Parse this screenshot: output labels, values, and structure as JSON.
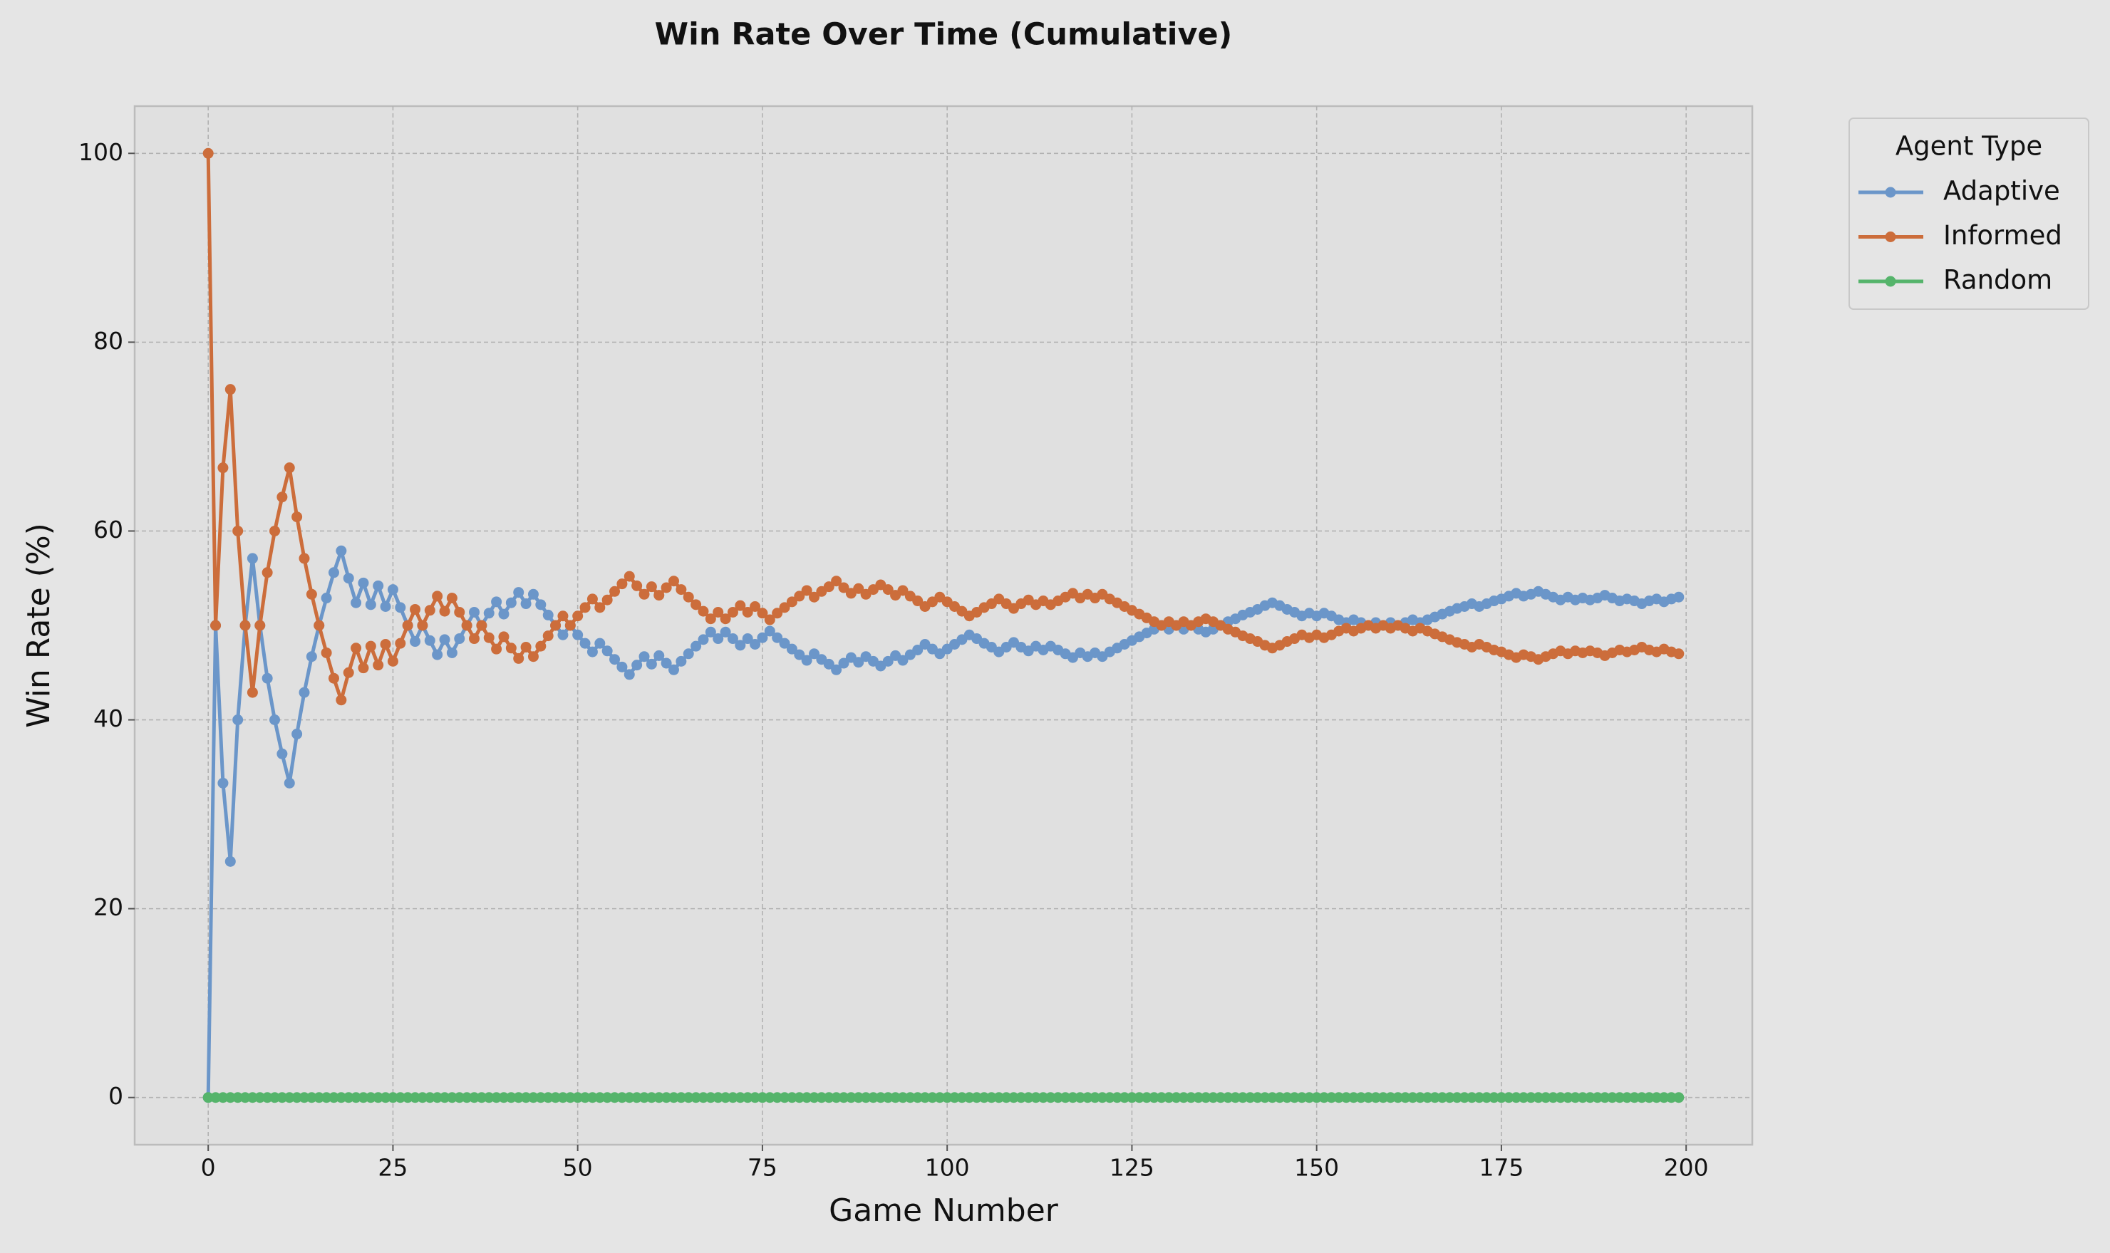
{
  "chart_data": {
    "type": "line",
    "title": "Win Rate Over Time (Cumulative)",
    "x_label": "Game Number",
    "y_label": "Win Rate (%)",
    "legend_title": "Agent Type",
    "legend_position": "outside-upper-right",
    "grid": true,
    "xlim": [
      -9.95,
      208.95
    ],
    "ylim": [
      -5,
      105
    ],
    "xticks": [
      0,
      25,
      50,
      75,
      100,
      125,
      150,
      175,
      200
    ],
    "yticks": [
      0,
      20,
      40,
      60,
      80,
      100
    ],
    "x": [
      0,
      1,
      2,
      3,
      4,
      5,
      6,
      7,
      8,
      9,
      10,
      11,
      12,
      13,
      14,
      15,
      16,
      17,
      18,
      19,
      20,
      21,
      22,
      23,
      24,
      25,
      26,
      27,
      28,
      29,
      30,
      31,
      32,
      33,
      34,
      35,
      36,
      37,
      38,
      39,
      40,
      41,
      42,
      43,
      44,
      45,
      46,
      47,
      48,
      49,
      50,
      51,
      52,
      53,
      54,
      55,
      56,
      57,
      58,
      59,
      60,
      61,
      62,
      63,
      64,
      65,
      66,
      67,
      68,
      69,
      70,
      71,
      72,
      73,
      74,
      75,
      76,
      77,
      78,
      79,
      80,
      81,
      82,
      83,
      84,
      85,
      86,
      87,
      88,
      89,
      90,
      91,
      92,
      93,
      94,
      95,
      96,
      97,
      98,
      99,
      100,
      101,
      102,
      103,
      104,
      105,
      106,
      107,
      108,
      109,
      110,
      111,
      112,
      113,
      114,
      115,
      116,
      117,
      118,
      119,
      120,
      121,
      122,
      123,
      124,
      125,
      126,
      127,
      128,
      129,
      130,
      131,
      132,
      133,
      134,
      135,
      136,
      137,
      138,
      139,
      140,
      141,
      142,
      143,
      144,
      145,
      146,
      147,
      148,
      149,
      150,
      151,
      152,
      153,
      154,
      155,
      156,
      157,
      158,
      159,
      160,
      161,
      162,
      163,
      164,
      165,
      166,
      167,
      168,
      169,
      170,
      171,
      172,
      173,
      174,
      175,
      176,
      177,
      178,
      179,
      180,
      181,
      182,
      183,
      184,
      185,
      186,
      187,
      188,
      189,
      190,
      191,
      192,
      193,
      194,
      195,
      196,
      197,
      198,
      199
    ],
    "series": [
      {
        "name": "Adaptive",
        "color": "#6b96c9",
        "values": [
          0,
          50,
          33.3,
          25,
          40,
          50,
          57.1,
          50,
          44.4,
          40,
          36.4,
          33.3,
          38.5,
          42.9,
          46.7,
          50,
          52.9,
          55.6,
          57.9,
          55,
          52.4,
          54.5,
          52.2,
          54.2,
          52,
          53.8,
          51.9,
          50,
          48.3,
          50,
          48.4,
          46.9,
          48.5,
          47.1,
          48.6,
          50,
          51.4,
          50,
          51.3,
          52.5,
          51.2,
          52.4,
          53.5,
          52.3,
          53.3,
          52.2,
          51.1,
          50,
          49,
          50,
          49,
          48.1,
          47.2,
          48.1,
          47.3,
          46.4,
          45.6,
          44.8,
          45.8,
          46.7,
          45.9,
          46.8,
          46,
          45.3,
          46.2,
          47,
          47.8,
          48.5,
          49.3,
          48.6,
          49.3,
          48.6,
          47.9,
          48.6,
          48,
          48.7,
          49.4,
          48.7,
          48.1,
          47.5,
          46.9,
          46.3,
          47,
          46.4,
          45.9,
          45.3,
          46,
          46.6,
          46.1,
          46.7,
          46.2,
          45.7,
          46.2,
          46.8,
          46.3,
          46.9,
          47.4,
          48,
          47.5,
          47,
          47.5,
          48,
          48.5,
          49,
          48.6,
          48.1,
          47.7,
          47.2,
          47.7,
          48.2,
          47.7,
          47.3,
          47.8,
          47.4,
          47.8,
          47.4,
          47,
          46.6,
          47.1,
          46.7,
          47.1,
          46.7,
          47.2,
          47.6,
          48,
          48.4,
          48.8,
          49.2,
          49.6,
          50,
          49.6,
          50,
          49.6,
          50,
          49.6,
          49.3,
          49.6,
          50,
          50.4,
          50.7,
          51.1,
          51.4,
          51.7,
          52.1,
          52.4,
          52.1,
          51.7,
          51.4,
          51,
          51.3,
          51,
          51.3,
          51,
          50.6,
          50.3,
          50.6,
          50.3,
          50,
          50.3,
          50,
          50.3,
          50,
          50.3,
          50.6,
          50.3,
          50.6,
          50.9,
          51.2,
          51.5,
          51.8,
          52,
          52.3,
          52,
          52.3,
          52.6,
          52.8,
          53.1,
          53.4,
          53.1,
          53.3,
          53.6,
          53.3,
          53,
          52.7,
          53,
          52.7,
          52.9,
          52.7,
          52.9,
          53.2,
          52.9,
          52.6,
          52.8,
          52.6,
          52.3,
          52.6,
          52.8,
          52.5,
          52.8,
          53
        ]
      },
      {
        "name": "Informed",
        "color": "#cc6d3b",
        "values": [
          100,
          50,
          66.7,
          75,
          60,
          50,
          42.9,
          50,
          55.6,
          60,
          63.6,
          66.7,
          61.5,
          57.1,
          53.3,
          50,
          47.1,
          44.4,
          42.1,
          45,
          47.6,
          45.5,
          47.8,
          45.8,
          48,
          46.2,
          48.1,
          50,
          51.7,
          50,
          51.6,
          53.1,
          51.5,
          52.9,
          51.4,
          50,
          48.6,
          50,
          48.7,
          47.5,
          48.8,
          47.6,
          46.5,
          47.7,
          46.7,
          47.8,
          48.9,
          50,
          51,
          50,
          51,
          51.9,
          52.8,
          51.9,
          52.7,
          53.6,
          54.4,
          55.2,
          54.2,
          53.3,
          54.1,
          53.2,
          54,
          54.7,
          53.8,
          53,
          52.2,
          51.5,
          50.7,
          51.4,
          50.7,
          51.4,
          52.1,
          51.4,
          52,
          51.3,
          50.6,
          51.3,
          51.9,
          52.5,
          53.1,
          53.7,
          53,
          53.6,
          54.1,
          54.7,
          54,
          53.4,
          53.9,
          53.3,
          53.8,
          54.3,
          53.8,
          53.2,
          53.7,
          53.1,
          52.6,
          52,
          52.5,
          53,
          52.5,
          52,
          51.5,
          51,
          51.4,
          51.9,
          52.3,
          52.8,
          52.3,
          51.8,
          52.3,
          52.7,
          52.2,
          52.6,
          52.2,
          52.6,
          53,
          53.4,
          52.9,
          53.3,
          52.9,
          53.3,
          52.8,
          52.4,
          52,
          51.6,
          51.2,
          50.8,
          50.4,
          50,
          50.4,
          50,
          50.4,
          50,
          50.4,
          50.7,
          50.4,
          50,
          49.6,
          49.3,
          48.9,
          48.6,
          48.3,
          47.9,
          47.6,
          47.9,
          48.3,
          48.6,
          49,
          48.7,
          49,
          48.7,
          49,
          49.4,
          49.7,
          49.4,
          49.7,
          50,
          49.7,
          50,
          49.7,
          50,
          49.7,
          49.4,
          49.7,
          49.4,
          49.1,
          48.8,
          48.5,
          48.2,
          48,
          47.7,
          48,
          47.7,
          47.4,
          47.2,
          46.9,
          46.6,
          46.9,
          46.7,
          46.4,
          46.7,
          47,
          47.3,
          47,
          47.3,
          47.1,
          47.3,
          47.1,
          46.8,
          47.1,
          47.4,
          47.2,
          47.4,
          47.7,
          47.4,
          47.2,
          47.5,
          47.2,
          47
        ]
      },
      {
        "name": "Random",
        "color": "#55b46b",
        "values": [
          0,
          0,
          0,
          0,
          0,
          0,
          0,
          0,
          0,
          0,
          0,
          0,
          0,
          0,
          0,
          0,
          0,
          0,
          0,
          0,
          0,
          0,
          0,
          0,
          0,
          0,
          0,
          0,
          0,
          0,
          0,
          0,
          0,
          0,
          0,
          0,
          0,
          0,
          0,
          0,
          0,
          0,
          0,
          0,
          0,
          0,
          0,
          0,
          0,
          0,
          0,
          0,
          0,
          0,
          0,
          0,
          0,
          0,
          0,
          0,
          0,
          0,
          0,
          0,
          0,
          0,
          0,
          0,
          0,
          0,
          0,
          0,
          0,
          0,
          0,
          0,
          0,
          0,
          0,
          0,
          0,
          0,
          0,
          0,
          0,
          0,
          0,
          0,
          0,
          0,
          0,
          0,
          0,
          0,
          0,
          0,
          0,
          0,
          0,
          0,
          0,
          0,
          0,
          0,
          0,
          0,
          0,
          0,
          0,
          0,
          0,
          0,
          0,
          0,
          0,
          0,
          0,
          0,
          0,
          0,
          0,
          0,
          0,
          0,
          0,
          0,
          0,
          0,
          0,
          0,
          0,
          0,
          0,
          0,
          0,
          0,
          0,
          0,
          0,
          0,
          0,
          0,
          0,
          0,
          0,
          0,
          0,
          0,
          0,
          0,
          0,
          0,
          0,
          0,
          0,
          0,
          0,
          0,
          0,
          0,
          0,
          0,
          0,
          0,
          0,
          0,
          0,
          0,
          0,
          0,
          0,
          0,
          0,
          0,
          0,
          0,
          0,
          0,
          0,
          0,
          0,
          0,
          0,
          0,
          0,
          0,
          0,
          0,
          0,
          0,
          0,
          0,
          0,
          0,
          0,
          0,
          0,
          0,
          0,
          0
        ]
      }
    ]
  }
}
